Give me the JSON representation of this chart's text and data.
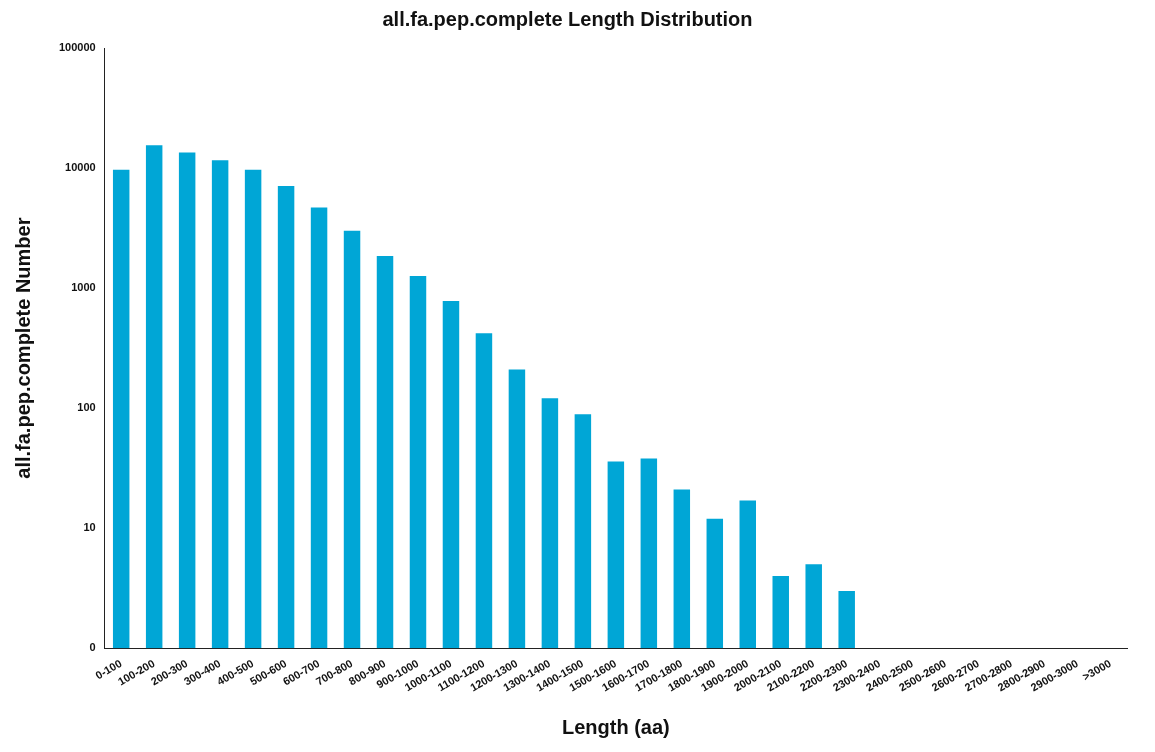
{
  "chart_data": {
    "type": "bar",
    "title": "all.fa.pep.complete Length Distribution",
    "xlabel": "Length (aa)",
    "ylabel": "all.fa.pep.complete Number",
    "categories": [
      "0-100",
      "100-200",
      "200-300",
      "300-400",
      "400-500",
      "500-600",
      "600-700",
      "700-800",
      "800-900",
      "900-1000",
      "1000-1100",
      "1100-1200",
      "1200-1300",
      "1300-1400",
      "1400-1500",
      "1500-1600",
      "1600-1700",
      "1700-1800",
      "1800-1900",
      "1900-2000",
      "2000-2100",
      "2100-2200",
      "2200-2300",
      "2300-2400",
      "2400-2500",
      "2500-2600",
      "2600-2700",
      "2700-2800",
      "2800-2900",
      "2900-3000",
      ">3000"
    ],
    "values": [
      9700,
      15500,
      13500,
      11600,
      9700,
      7100,
      4700,
      3000,
      1850,
      1260,
      780,
      420,
      210,
      121,
      89,
      36,
      38,
      21,
      12,
      17,
      4,
      5,
      3,
      0,
      0,
      0,
      0,
      0,
      0,
      0,
      0
    ],
    "color": "#00a6d6",
    "log": true,
    "ylim": [
      0,
      100000
    ],
    "yticks": [
      0,
      10,
      100,
      1000,
      10000,
      100000
    ],
    "grid": false,
    "legend": false
  }
}
